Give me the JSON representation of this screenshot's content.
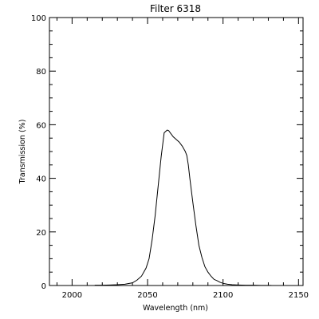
{
  "chart_data": {
    "type": "line",
    "title": "Filter 6318",
    "xlabel": "Wavelength (nm)",
    "ylabel": "Transmission (%)",
    "xlim": [
      1985,
      2153
    ],
    "ylim": [
      0,
      100
    ],
    "xticks": [
      2000,
      2050,
      2100,
      2150
    ],
    "yticks": [
      0,
      20,
      40,
      60,
      80,
      100
    ],
    "grid": false,
    "series": [
      {
        "color": "#000000",
        "x": [
          2015,
          2020,
          2025,
          2030,
          2035,
          2040,
          2043,
          2046,
          2049,
          2051,
          2053,
          2055,
          2057,
          2059,
          2061,
          2063,
          2064,
          2065,
          2067,
          2069,
          2071,
          2073,
          2075,
          2076,
          2077,
          2078,
          2080,
          2082,
          2084,
          2086,
          2088,
          2090,
          2092,
          2094,
          2096,
          2098,
          2100,
          2103,
          2106,
          2110,
          2115,
          2120,
          2125,
          2132
        ],
        "y": [
          0.1,
          0.1,
          0.2,
          0.3,
          0.5,
          1,
          2,
          3.5,
          6.5,
          10,
          17,
          26,
          37,
          48,
          57,
          58,
          57.8,
          57,
          55.5,
          54.5,
          53.5,
          52,
          50,
          48.5,
          45,
          40,
          31,
          22.5,
          15,
          10.5,
          7,
          5,
          3.5,
          2.3,
          1.8,
          1.2,
          0.8,
          0.5,
          0.3,
          0.2,
          0.1,
          0.1,
          0.05,
          0.05
        ]
      }
    ]
  }
}
